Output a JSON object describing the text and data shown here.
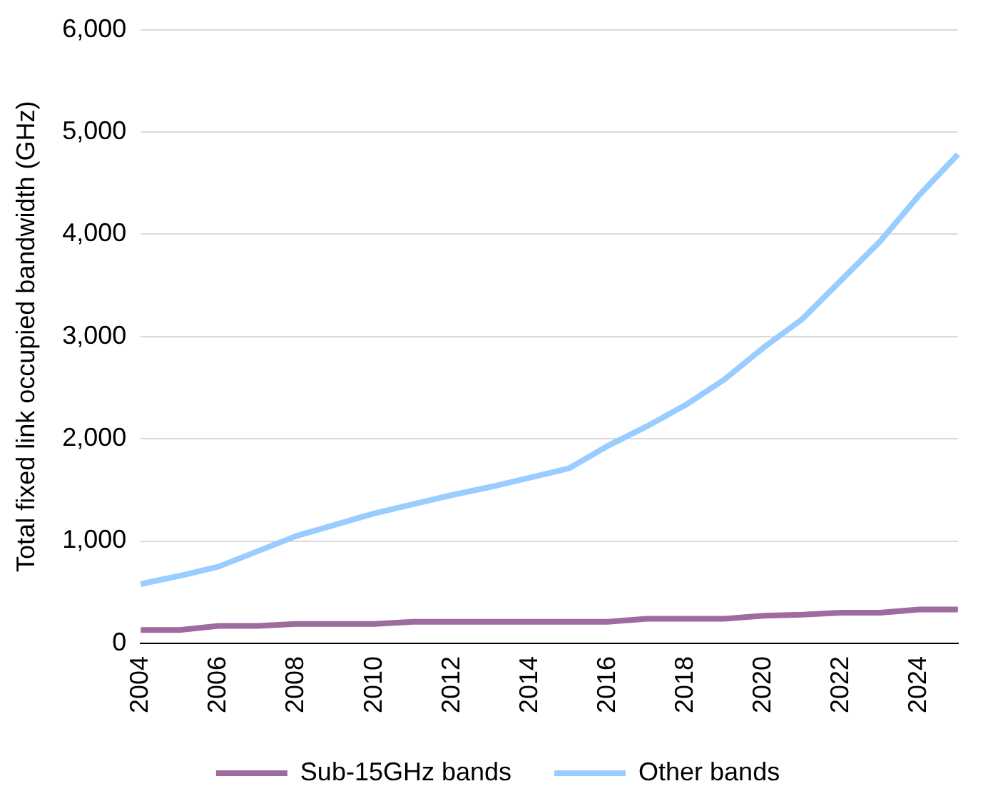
{
  "chart_data": {
    "type": "line",
    "ylabel": "Total fixed link occupied bandwidth (GHz)",
    "categories": [
      "2004",
      null,
      "2006",
      null,
      "2008",
      null,
      "2010",
      null,
      "2012",
      null,
      "2014",
      null,
      "2016",
      null,
      "2018",
      null,
      "2020",
      null,
      "2022",
      null,
      "2024",
      null
    ],
    "series": [
      {
        "name": "Sub-15GHz bands",
        "color": "#9e6b9e",
        "values": [
          130,
          130,
          170,
          170,
          190,
          190,
          190,
          210,
          210,
          210,
          210,
          210,
          210,
          240,
          240,
          240,
          270,
          280,
          300,
          300,
          330,
          330
        ]
      },
      {
        "name": "Other bands",
        "color": "#99ccff",
        "values": [
          580,
          660,
          750,
          900,
          1050,
          1160,
          1270,
          1360,
          1450,
          1530,
          1620,
          1710,
          1930,
          2120,
          2330,
          2580,
          2890,
          3170,
          3550,
          3930,
          4380,
          4780
        ]
      }
    ],
    "ylim": [
      0,
      6000
    ],
    "yticks": [
      {
        "value": 0,
        "label": "0"
      },
      {
        "value": 1000,
        "label": "1,000"
      },
      {
        "value": 2000,
        "label": "2,000"
      },
      {
        "value": 3000,
        "label": "3,000"
      },
      {
        "value": 4000,
        "label": "4,000"
      },
      {
        "value": 5000,
        "label": "5,000"
      },
      {
        "value": 6000,
        "label": "6,000"
      }
    ],
    "grid": "y",
    "legend": "bottom",
    "marker": "none",
    "line_style": "solid"
  }
}
